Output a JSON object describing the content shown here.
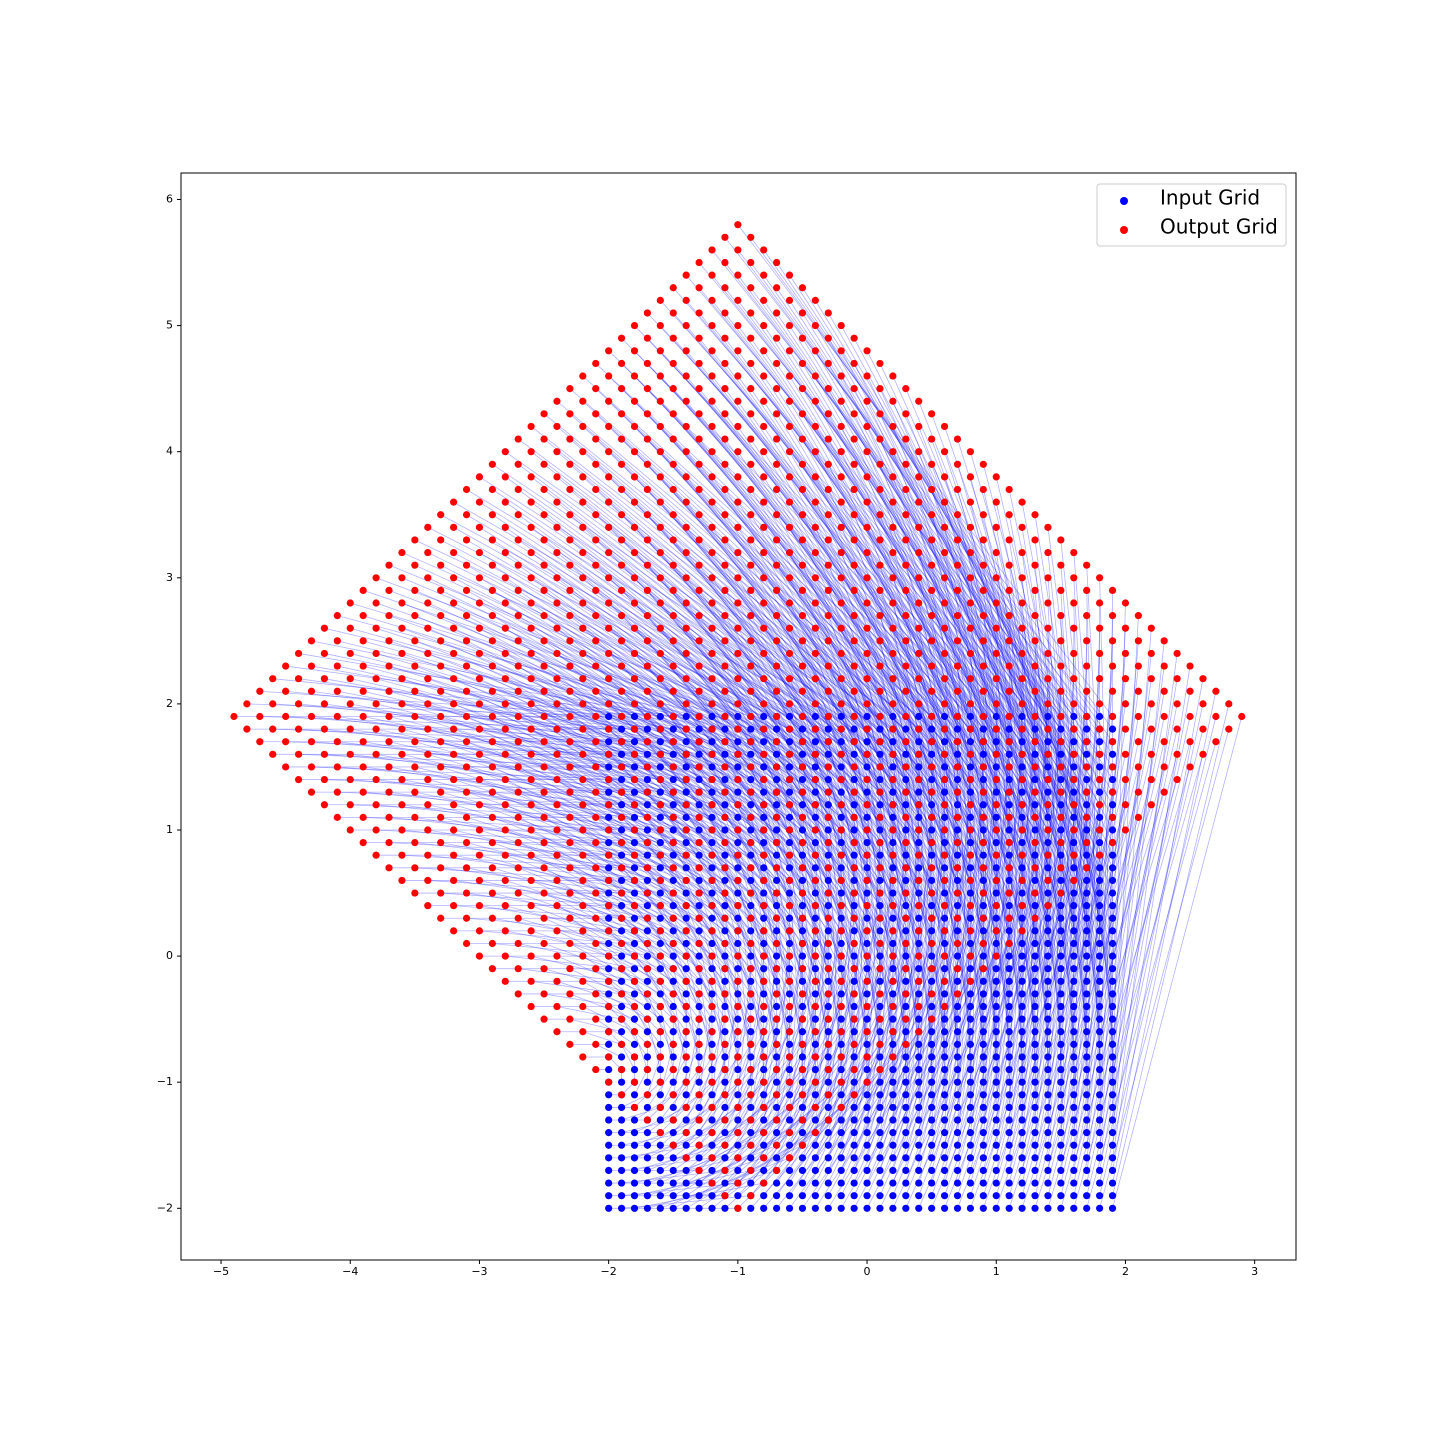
{
  "chart_data": {
    "type": "scatter",
    "xlim": [
      -5.31,
      3.32
    ],
    "ylim": [
      -2.41,
      6.21
    ],
    "xticks": [
      {
        "value": -5,
        "label": "−5"
      },
      {
        "value": -4,
        "label": "−4"
      },
      {
        "value": -3,
        "label": "−3"
      },
      {
        "value": -2,
        "label": "−2"
      },
      {
        "value": -1,
        "label": "−1"
      },
      0,
      1,
      2,
      3
    ],
    "yticks": [
      {
        "value": -2,
        "label": "−2"
      },
      {
        "value": -1,
        "label": "−1"
      },
      0,
      1,
      2,
      3,
      4,
      5,
      6
    ],
    "legend": "upper right",
    "link_color": "#0000ff",
    "series": [
      {
        "name": "Input Grid",
        "color": "#0000ff",
        "grid_shape": "square",
        "x": [
          -2,
          -1.9,
          -1.8,
          -1.7,
          -1.6,
          -1.5,
          -1.4,
          -1.3,
          -1.2,
          -1.1,
          -1,
          -0.9,
          -0.8,
          -0.7,
          -0.6,
          -0.5,
          -0.4,
          -0.3,
          -0.2,
          -0.1,
          0,
          0.1,
          0.2,
          0.3,
          0.4,
          0.5,
          0.6,
          0.7,
          0.8,
          0.9,
          1,
          1.1,
          1.2,
          1.3,
          1.4,
          1.5,
          1.6,
          1.7,
          1.8,
          1.9
        ],
        "y": [
          -2,
          -1.9,
          -1.8,
          -1.7,
          -1.6,
          -1.5,
          -1.4,
          -1.3,
          -1.2,
          -1.1,
          -1,
          -0.9,
          -0.8,
          -0.7,
          -0.6,
          -0.5,
          -0.4,
          -0.3,
          -0.2,
          -0.1,
          0,
          0.1,
          0.2,
          0.3,
          0.4,
          0.5,
          0.6,
          0.7,
          0.8,
          0.9,
          1,
          1.1,
          1.2,
          1.3,
          1.4,
          1.5,
          1.6,
          1.7,
          1.8,
          1.9
        ]
      },
      {
        "name": "Output Grid",
        "color": "#ff0000",
        "grid_shape": "diamond",
        "x": [
          -4.9,
          -4.8,
          -4.7,
          -4.6,
          -4.5,
          -4.4,
          -4.3,
          -4.2,
          -4.1,
          -4,
          -3.9,
          -3.8,
          -3.7,
          -3.6,
          -3.5,
          -3.4,
          -3.3,
          -3.2,
          -3.1,
          -3,
          -2.9,
          -2.8,
          -2.7,
          -2.6,
          -2.5,
          -2.4,
          -2.3,
          -2.2,
          -2.1,
          -2,
          -1.9,
          -1.8,
          -1.7,
          -1.6,
          -1.5,
          -1.4,
          -1.3,
          -1.2,
          -1.1,
          -1,
          -0.9,
          -0.8,
          -0.7,
          -0.6,
          -0.5,
          -0.4,
          -0.3,
          -0.2,
          -0.1,
          0,
          0.1,
          0.2,
          0.3,
          0.4,
          0.5,
          0.6,
          0.7,
          0.8,
          0.9,
          1,
          1.1,
          1.2,
          1.3,
          1.4,
          1.5,
          1.6,
          1.7,
          1.8,
          1.9,
          2,
          2.1,
          2.2,
          2.3,
          2.4,
          2.5,
          2.6,
          2.7,
          2.8,
          2.9
        ],
        "y": [
          -2,
          -1.9,
          -1.8,
          -1.7,
          -1.6,
          -1.5,
          -1.4,
          -1.3,
          -1.2,
          -1.1,
          -1,
          -0.9,
          -0.8,
          -0.7,
          -0.6,
          -0.5,
          -0.4,
          -0.3,
          -0.2,
          -0.1,
          0,
          0.1,
          0.2,
          0.3,
          0.4,
          0.5,
          0.6,
          0.7,
          0.8,
          0.9,
          1,
          1.1,
          1.2,
          1.3,
          1.4,
          1.5,
          1.6,
          1.7,
          1.8,
          1.9,
          2,
          2.1,
          2.2,
          2.3,
          2.4,
          2.5,
          2.6,
          2.7,
          2.8,
          2.9,
          3,
          3.1,
          3.2,
          3.3,
          3.4,
          3.5,
          3.6,
          3.7,
          3.8,
          3.9,
          4,
          4.1,
          4.2,
          4.3,
          4.4,
          4.5,
          4.6,
          4.7,
          4.8,
          4.9,
          5,
          5.1,
          5.2,
          5.3,
          5.4,
          5.5,
          5.6,
          5.7,
          5.8
        ]
      }
    ]
  }
}
